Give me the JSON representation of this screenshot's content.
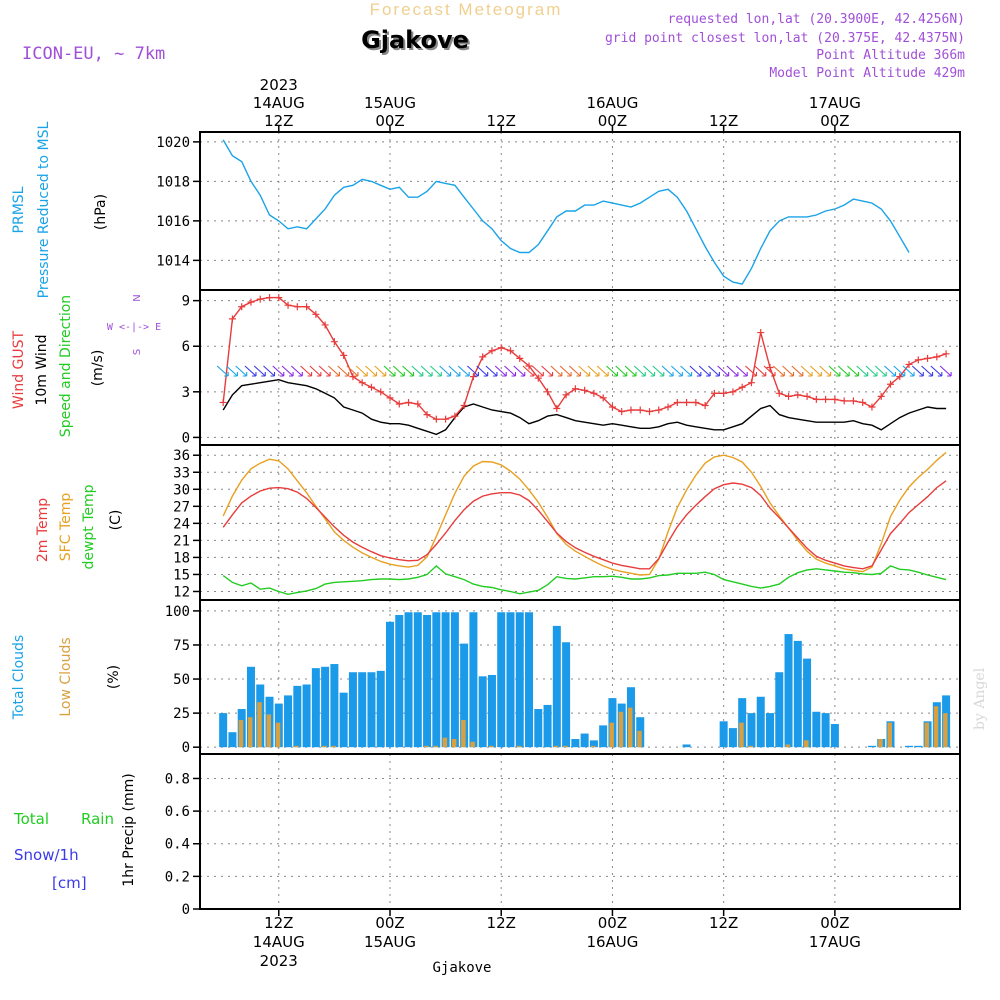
{
  "header": {
    "product": "Forecast Meteogram",
    "location": "Gjakove",
    "model": "ICON-EU, ~ 7km",
    "requested": "requested lon,lat (20.3900E, 42.4256N)",
    "grid_point": "grid point closest lon,lat (20.375E, 42.4375N)",
    "point_alt": "Point Altitude 366m",
    "model_alt": "Model Point Altitude 429m",
    "watermark": "by Angel",
    "footer_location": "Gjakove"
  },
  "colors": {
    "pressure": "#1aa3e8",
    "gust": "#e83c3c",
    "wind": "#000000",
    "temp2m": "#e83c3c",
    "sfc_temp": "#e8a020",
    "dewpt": "#22cc22",
    "total_clouds": "#1a9ae8",
    "low_clouds": "#d8a040",
    "rain": "#22cc22",
    "snow": "#3a3ae8",
    "meta": "#a050d8"
  },
  "time_axis": {
    "top_labels": [
      {
        "hour": 12,
        "lines": [
          "2023",
          "14AUG",
          "12Z"
        ]
      },
      {
        "hour": 24,
        "lines": [
          "15AUG",
          "00Z"
        ]
      },
      {
        "hour": 36,
        "lines": [
          "12Z"
        ]
      },
      {
        "hour": 48,
        "lines": [
          "16AUG",
          "00Z"
        ]
      },
      {
        "hour": 60,
        "lines": [
          "12Z"
        ]
      },
      {
        "hour": 72,
        "lines": [
          "17AUG",
          "00Z"
        ]
      }
    ],
    "bottom_labels": [
      {
        "hour": 12,
        "lines": [
          "12Z",
          "14AUG",
          "2023"
        ]
      },
      {
        "hour": 24,
        "lines": [
          "00Z",
          "15AUG"
        ]
      },
      {
        "hour": 36,
        "lines": [
          "12Z"
        ]
      },
      {
        "hour": 48,
        "lines": [
          "00Z",
          "16AUG"
        ]
      },
      {
        "hour": 60,
        "lines": [
          "12Z"
        ]
      },
      {
        "hour": 72,
        "lines": [
          "00Z",
          "17AUG"
        ]
      }
    ]
  },
  "panel_labels": {
    "pressure": [
      "PRMSL",
      "Pressure Reduced to MSL",
      "(hPa)"
    ],
    "wind": [
      "Wind GUST",
      "10m Wind",
      "Speed and Direction",
      "(m/s)"
    ],
    "compass": [
      "N",
      "W <-|-> E",
      "S"
    ],
    "temp": [
      "2m Temp",
      "SFC Temp",
      "dewpt Temp",
      "(C)"
    ],
    "clouds": [
      "Total Clouds",
      "Low Clouds",
      "(%)"
    ],
    "precip": [
      "Total",
      "Rain",
      "Snow/1h",
      "[cm]",
      "1hr Precip (mm)"
    ]
  },
  "chart_data": [
    {
      "type": "line",
      "panel": "pressure",
      "ylim": [
        1012.5,
        1020.5
      ],
      "yticks": [
        "1014",
        "1016",
        "1018",
        "1020"
      ],
      "x_hours": [
        6,
        7,
        8,
        9,
        10,
        11,
        12,
        13,
        14,
        15,
        16,
        17,
        18,
        19,
        20,
        21,
        22,
        23,
        24,
        25,
        26,
        27,
        28,
        29,
        30,
        31,
        32,
        33,
        34,
        35,
        36,
        37,
        38,
        39,
        40,
        41,
        42,
        43,
        44,
        45,
        46,
        47,
        48,
        49,
        50,
        51,
        52,
        53,
        54,
        55,
        56,
        57,
        58,
        59,
        60,
        61,
        62,
        63,
        64,
        65,
        66,
        67,
        68,
        69,
        70,
        71,
        72,
        73,
        74,
        75,
        76,
        77,
        78,
        79,
        80,
        81,
        82,
        83,
        84
      ],
      "series": [
        {
          "values": [
            1020.1,
            1019.3,
            1019.0,
            1018.0,
            1017.3,
            1016.3,
            1016.0,
            1015.6,
            1015.7,
            1015.6,
            1016.1,
            1016.6,
            1017.3,
            1017.7,
            1017.8,
            1018.1,
            1018.0,
            1017.8,
            1017.6,
            1017.7,
            1017.2,
            1017.2,
            1017.5,
            1018.0,
            1017.9,
            1017.8,
            1017.2,
            1016.6,
            1016.0,
            1015.6,
            1015.0,
            1014.6,
            1014.4,
            1014.4,
            1014.8,
            1015.5,
            1016.2,
            1016.5,
            1016.5,
            1016.8,
            1016.8,
            1017.0,
            1016.9,
            1016.8,
            1016.7,
            1016.9,
            1017.2,
            1017.5,
            1017.6,
            1017.2,
            1016.5,
            1015.6,
            1014.7,
            1013.9,
            1013.2,
            1012.9,
            1012.8,
            1013.6,
            1014.6,
            1015.5,
            1016.0,
            1016.2,
            1016.2,
            1016.2,
            1016.3,
            1016.5,
            1016.6,
            1016.8,
            1017.1,
            1017.0,
            1016.9,
            1016.6,
            1016.0,
            1015.2,
            1014.4
          ]
        }
      ]
    },
    {
      "type": "line",
      "panel": "wind",
      "ylim": [
        -0.5,
        9.7
      ],
      "yticks": [
        "0",
        "3",
        "6",
        "9"
      ],
      "x_hours": [
        6,
        7,
        8,
        9,
        10,
        11,
        12,
        13,
        14,
        15,
        16,
        17,
        18,
        19,
        20,
        21,
        22,
        23,
        24,
        25,
        26,
        27,
        28,
        29,
        30,
        31,
        32,
        33,
        34,
        35,
        36,
        37,
        38,
        39,
        40,
        41,
        42,
        43,
        44,
        45,
        46,
        47,
        48,
        49,
        50,
        51,
        52,
        53,
        54,
        55,
        56,
        57,
        58,
        59,
        60,
        61,
        62,
        63,
        64,
        65,
        66,
        67,
        68,
        69,
        70,
        71,
        72,
        73,
        74,
        75,
        76,
        77,
        78,
        79,
        80,
        81,
        82,
        83,
        84
      ],
      "series": [
        {
          "name": "Wind GUST",
          "values": [
            2.3,
            7.8,
            8.6,
            8.9,
            9.1,
            9.2,
            9.2,
            8.7,
            8.6,
            8.6,
            8.1,
            7.4,
            6.3,
            5.4,
            4.0,
            3.6,
            3.3,
            3.0,
            2.6,
            2.2,
            2.3,
            2.2,
            1.5,
            1.2,
            1.2,
            1.4,
            2.1,
            4.0,
            5.3,
            5.7,
            5.9,
            5.7,
            5.2,
            4.7,
            3.9,
            3.0,
            1.9,
            2.8,
            3.2,
            3.1,
            2.9,
            2.6,
            2.0,
            1.7,
            1.8,
            1.8,
            1.7,
            1.8,
            2.0,
            2.3,
            2.3,
            2.3,
            2.1,
            2.9,
            2.9,
            3.0,
            3.3,
            3.6,
            6.9,
            4.6,
            2.9,
            2.7,
            2.8,
            2.7,
            2.5,
            2.5,
            2.5,
            2.4,
            2.4,
            2.3,
            2.0,
            2.7,
            3.5,
            4.0,
            4.8,
            5.1,
            5.2,
            5.3,
            5.5
          ]
        },
        {
          "name": "10m Wind",
          "values": [
            1.8,
            2.8,
            3.4,
            3.5,
            3.6,
            3.7,
            3.8,
            3.6,
            3.5,
            3.4,
            3.2,
            2.9,
            2.6,
            2.0,
            1.8,
            1.6,
            1.2,
            1.0,
            0.9,
            0.9,
            0.8,
            0.6,
            0.4,
            0.2,
            0.5,
            1.3,
            2.0,
            2.2,
            2.0,
            1.8,
            1.7,
            1.6,
            1.3,
            0.9,
            1.1,
            1.4,
            1.5,
            1.3,
            1.1,
            1.0,
            0.9,
            0.8,
            0.9,
            0.8,
            0.7,
            0.6,
            0.6,
            0.7,
            0.9,
            1.0,
            0.8,
            0.7,
            0.6,
            0.5,
            0.5,
            0.7,
            0.9,
            1.4,
            1.9,
            2.1,
            1.5,
            1.3,
            1.2,
            1.1,
            1.0,
            1.0,
            1.0,
            1.0,
            1.1,
            0.9,
            0.8,
            0.5,
            0.9,
            1.3,
            1.6,
            1.8,
            2.0,
            1.9,
            1.9
          ]
        }
      ]
    },
    {
      "type": "line",
      "panel": "temp",
      "ylim": [
        10.5,
        37.8
      ],
      "yticks": [
        "12",
        "15",
        "18",
        "21",
        "24",
        "27",
        "30",
        "33",
        "36"
      ],
      "x_hours": [
        6,
        7,
        8,
        9,
        10,
        11,
        12,
        13,
        14,
        15,
        16,
        17,
        18,
        19,
        20,
        21,
        22,
        23,
        24,
        25,
        26,
        27,
        28,
        29,
        30,
        31,
        32,
        33,
        34,
        35,
        36,
        37,
        38,
        39,
        40,
        41,
        42,
        43,
        44,
        45,
        46,
        47,
        48,
        49,
        50,
        51,
        52,
        53,
        54,
        55,
        56,
        57,
        58,
        59,
        60,
        61,
        62,
        63,
        64,
        65,
        66,
        67,
        68,
        69,
        70,
        71,
        72,
        73,
        74,
        75,
        76,
        77,
        78,
        79,
        80,
        81,
        82,
        83,
        84
      ],
      "series": [
        {
          "name": "2m Temp",
          "values": [
            23.3,
            25.5,
            27.6,
            28.8,
            29.7,
            30.2,
            30.3,
            30.1,
            29.5,
            28.4,
            26.8,
            25.1,
            23.4,
            21.9,
            20.7,
            19.8,
            19.0,
            18.3,
            17.9,
            17.6,
            17.4,
            17.5,
            18.5,
            20.3,
            22.3,
            24.5,
            26.4,
            27.9,
            28.8,
            29.2,
            29.4,
            29.4,
            29.0,
            28.0,
            26.3,
            24.3,
            22.3,
            20.8,
            19.7,
            18.9,
            18.2,
            17.6,
            17.0,
            16.6,
            16.3,
            16.0,
            16.0,
            17.8,
            20.7,
            23.4,
            25.5,
            27.2,
            28.7,
            30.1,
            30.8,
            31.1,
            30.9,
            30.3,
            28.9,
            26.7,
            25.0,
            23.2,
            21.4,
            19.6,
            18.2,
            17.5,
            17.0,
            16.5,
            16.2,
            16.0,
            16.5,
            19.3,
            22.2,
            24.0,
            25.9,
            27.3,
            28.7,
            30.3,
            31.5
          ]
        },
        {
          "name": "SFC Temp",
          "values": [
            25.3,
            28.8,
            31.6,
            33.6,
            34.6,
            35.3,
            35.0,
            33.6,
            31.5,
            29.4,
            27.0,
            24.8,
            22.5,
            21.0,
            19.8,
            18.8,
            18.0,
            17.3,
            16.8,
            16.5,
            16.3,
            16.6,
            18.1,
            21.7,
            25.5,
            29.3,
            32.3,
            34.1,
            34.9,
            34.8,
            34.3,
            33.2,
            31.8,
            29.9,
            27.7,
            25.1,
            22.2,
            20.3,
            19.1,
            18.2,
            17.3,
            16.5,
            15.9,
            15.5,
            15.2,
            14.9,
            15.0,
            17.7,
            22.5,
            26.8,
            29.9,
            32.5,
            34.6,
            35.7,
            36.0,
            35.6,
            34.8,
            33.0,
            30.5,
            27.6,
            25.3,
            23.2,
            21.0,
            19.1,
            17.7,
            17.0,
            16.5,
            16.0,
            15.7,
            15.5,
            16.3,
            20.4,
            25.2,
            28.1,
            30.4,
            32.1,
            33.5,
            35.1,
            36.5
          ]
        },
        {
          "name": "dewpt Temp",
          "values": [
            14.8,
            13.6,
            13.0,
            13.5,
            12.4,
            12.6,
            12.0,
            11.5,
            11.8,
            12.1,
            12.5,
            13.3,
            13.6,
            13.7,
            13.8,
            13.9,
            14.1,
            14.2,
            14.2,
            14.1,
            14.2,
            14.5,
            15.0,
            16.5,
            15.1,
            14.6,
            14.1,
            13.3,
            12.9,
            12.7,
            12.3,
            12.0,
            11.6,
            11.9,
            12.2,
            13.2,
            14.6,
            14.3,
            14.2,
            14.4,
            14.6,
            14.6,
            14.7,
            14.5,
            14.2,
            14.2,
            14.4,
            14.8,
            14.9,
            15.2,
            15.2,
            15.2,
            15.4,
            15.0,
            14.1,
            13.7,
            13.3,
            12.9,
            12.6,
            12.9,
            13.3,
            14.5,
            15.3,
            15.8,
            16.0,
            15.8,
            15.6,
            15.4,
            15.3,
            15.1,
            15.0,
            15.2,
            16.5,
            15.9,
            15.8,
            15.4,
            14.9,
            14.5,
            14.1
          ]
        }
      ]
    },
    {
      "type": "bar",
      "panel": "clouds",
      "ylim": [
        -5,
        108
      ],
      "yticks": [
        "0",
        "25",
        "50",
        "75",
        "100"
      ],
      "x_hours": [
        6,
        7,
        8,
        9,
        10,
        11,
        12,
        13,
        14,
        15,
        16,
        17,
        18,
        19,
        20,
        21,
        22,
        23,
        24,
        25,
        26,
        27,
        28,
        29,
        30,
        31,
        32,
        33,
        34,
        35,
        36,
        37,
        38,
        39,
        40,
        41,
        42,
        43,
        44,
        45,
        46,
        47,
        48,
        49,
        50,
        51,
        52,
        53,
        54,
        55,
        56,
        57,
        58,
        59,
        60,
        61,
        62,
        63,
        64,
        65,
        66,
        67,
        68,
        69,
        70,
        71,
        72,
        73,
        74,
        75,
        76,
        77,
        78,
        79,
        80,
        81,
        82,
        83,
        84
      ],
      "series": [
        {
          "name": "Total Clouds",
          "values": [
            25,
            11,
            28,
            59,
            46,
            37,
            32,
            38,
            45,
            46,
            58,
            59,
            61,
            40,
            55,
            55,
            55,
            56,
            92,
            97,
            99,
            99,
            97,
            99,
            99,
            99,
            76,
            99,
            52,
            53,
            99,
            99,
            99,
            99,
            28,
            31,
            89,
            77,
            6,
            10,
            5,
            16,
            36,
            32,
            44,
            22,
            0,
            0,
            0,
            0,
            2,
            0,
            0,
            0,
            19,
            14,
            36,
            25,
            37,
            25,
            55,
            83,
            78,
            65,
            26,
            25,
            17,
            0,
            0,
            0,
            1,
            6,
            19,
            0,
            1,
            1,
            19,
            33,
            38
          ]
        },
        {
          "name": "Low Clouds",
          "values": [
            0,
            0,
            20,
            22,
            33,
            24,
            18,
            0,
            1,
            0,
            0,
            1,
            1,
            0,
            0,
            0,
            0,
            0,
            0,
            0,
            0,
            0,
            1,
            1,
            7,
            6,
            20,
            4,
            0,
            1,
            0,
            0,
            1,
            0,
            0,
            0,
            1,
            1,
            0,
            0,
            1,
            0,
            18,
            26,
            29,
            12,
            0,
            0,
            0,
            0,
            0,
            0,
            0,
            0,
            0,
            0,
            18,
            1,
            0,
            0,
            0,
            2,
            0,
            5,
            0,
            0,
            0,
            0,
            0,
            0,
            0,
            6,
            18,
            0,
            0,
            0,
            18,
            30,
            25
          ]
        }
      ]
    },
    {
      "type": "bar",
      "panel": "precip",
      "ylim": [
        0,
        0.95
      ],
      "yticks": [
        "0",
        "0.2",
        "0.4",
        "0.6",
        "0.8"
      ],
      "x_hours": [],
      "series": []
    }
  ]
}
